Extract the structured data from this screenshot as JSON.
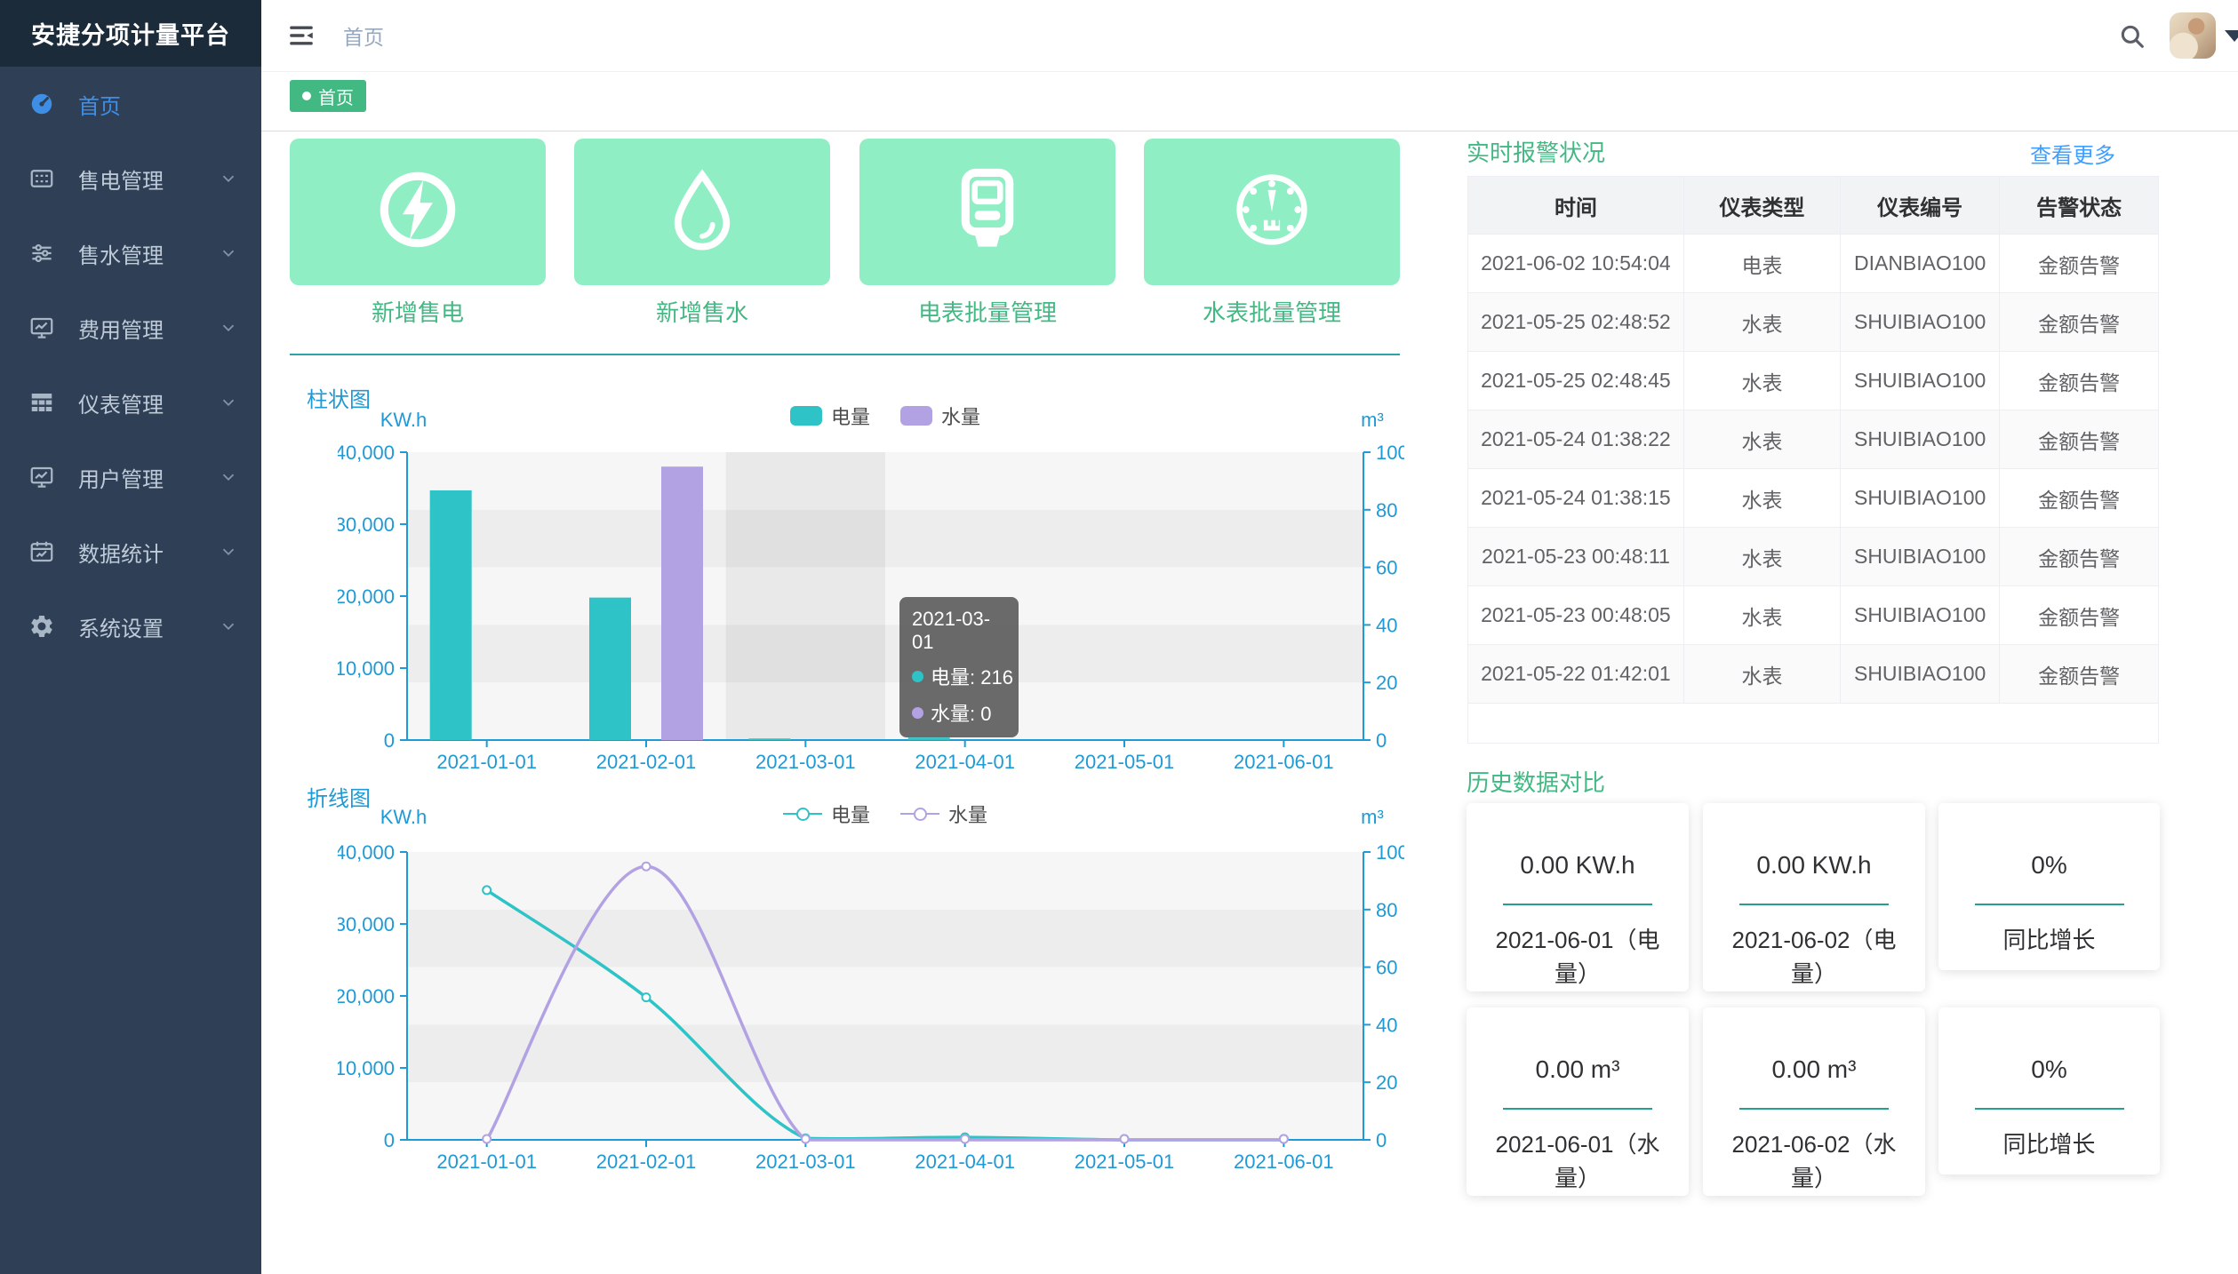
{
  "app": {
    "title": "安捷分项计量平台"
  },
  "topbar": {
    "breadcrumb": "首页"
  },
  "tags": [
    {
      "label": "首页",
      "active": true
    }
  ],
  "sidebar": {
    "items": [
      {
        "icon": "dashboard-icon",
        "label": "首页",
        "active": true,
        "has_children": false
      },
      {
        "icon": "card-icon",
        "label": "售电管理",
        "active": false,
        "has_children": true
      },
      {
        "icon": "sliders-icon",
        "label": "售水管理",
        "active": false,
        "has_children": true
      },
      {
        "icon": "board-chart-icon",
        "label": "费用管理",
        "active": false,
        "has_children": true
      },
      {
        "icon": "grid-icon",
        "label": "仪表管理",
        "active": false,
        "has_children": true
      },
      {
        "icon": "board-chart-icon",
        "label": "用户管理",
        "active": false,
        "has_children": true
      },
      {
        "icon": "calendar-chart-icon",
        "label": "数据统计",
        "active": false,
        "has_children": true
      },
      {
        "icon": "gear-icon",
        "label": "系统设置",
        "active": false,
        "has_children": true
      }
    ]
  },
  "quick_actions": [
    {
      "icon": "lightning-icon",
      "label": "新增售电"
    },
    {
      "icon": "water-drop-icon",
      "label": "新增售水"
    },
    {
      "icon": "electric-meter-icon",
      "label": "电表批量管理"
    },
    {
      "icon": "water-meter-icon",
      "label": "水表批量管理"
    }
  ],
  "chart_data": [
    {
      "type": "bar",
      "title": "柱状图",
      "categories": [
        "2021-01-01",
        "2021-02-01",
        "2021-03-01",
        "2021-04-01",
        "2021-05-01",
        "2021-06-01"
      ],
      "series": [
        {
          "name": "电量",
          "color": "#2ec3c6",
          "axis": "left",
          "values": [
            34700,
            19800,
            216,
            350,
            0,
            0
          ]
        },
        {
          "name": "水量",
          "color": "#b3a2e3",
          "axis": "right",
          "values": [
            0,
            95,
            0,
            0,
            0,
            0
          ]
        }
      ],
      "left_axis": {
        "label": "KW.h",
        "max": 40000,
        "ticks": [
          "0",
          "10,000",
          "20,000",
          "30,000",
          "40,000"
        ]
      },
      "right_axis": {
        "label": "m³",
        "max": 100,
        "ticks": [
          "0",
          "20",
          "40",
          "60",
          "80",
          "100"
        ]
      },
      "legend_position": "top-center",
      "grid": true,
      "hover_category_index": 2,
      "tooltip": {
        "title": "2021-03-01",
        "items": [
          {
            "name": "电量",
            "value": "216"
          },
          {
            "name": "水量",
            "value": "0"
          }
        ]
      }
    },
    {
      "type": "line",
      "title": "折线图",
      "categories": [
        "2021-01-01",
        "2021-02-01",
        "2021-03-01",
        "2021-04-01",
        "2021-05-01",
        "2021-06-01"
      ],
      "series": [
        {
          "name": "电量",
          "color": "#2ec3c6",
          "axis": "left",
          "values": [
            34700,
            19800,
            216,
            350,
            0,
            0
          ]
        },
        {
          "name": "水量",
          "color": "#b3a2e3",
          "axis": "right",
          "values": [
            0,
            95,
            0,
            0,
            0,
            0
          ]
        }
      ],
      "left_axis": {
        "label": "KW.h",
        "max": 40000,
        "ticks": [
          "0",
          "10,000",
          "20,000",
          "30,000",
          "40,000"
        ]
      },
      "right_axis": {
        "label": "m³",
        "max": 100,
        "ticks": [
          "0",
          "20",
          "40",
          "60",
          "80",
          "100"
        ]
      },
      "legend_position": "top-center",
      "grid": true
    }
  ],
  "alarm": {
    "title": "实时报警状况",
    "more_label": "查看更多",
    "columns": [
      "时间",
      "仪表类型",
      "仪表编号",
      "告警状态"
    ],
    "rows": [
      [
        "2021-06-02 10:54:04",
        "电表",
        "DIANBIAO100",
        "金额告警"
      ],
      [
        "2021-05-25 02:48:52",
        "水表",
        "SHUIBIAO100",
        "金额告警"
      ],
      [
        "2021-05-25 02:48:45",
        "水表",
        "SHUIBIAO100",
        "金额告警"
      ],
      [
        "2021-05-24 01:38:22",
        "水表",
        "SHUIBIAO100",
        "金额告警"
      ],
      [
        "2021-05-24 01:38:15",
        "水表",
        "SHUIBIAO100",
        "金额告警"
      ],
      [
        "2021-05-23 00:48:11",
        "水表",
        "SHUIBIAO100",
        "金额告警"
      ],
      [
        "2021-05-23 00:48:05",
        "水表",
        "SHUIBIAO100",
        "金额告警"
      ],
      [
        "2021-05-22 01:42:01",
        "水表",
        "SHUIBIAO100",
        "金额告警"
      ]
    ],
    "trailing_empty_row": true
  },
  "history": {
    "title": "历史数据对比",
    "cards": [
      {
        "value": "0.00 KW.h",
        "label": "2021-06-01（电量）",
        "small": false
      },
      {
        "value": "0.00 KW.h",
        "label": "2021-06-02（电量）",
        "small": false
      },
      {
        "value": "0%",
        "label": "同比增长",
        "small": true
      },
      {
        "value": "0.00 m³",
        "label": "2021-06-01（水量）",
        "small": false
      },
      {
        "value": "0.00 m³",
        "label": "2021-06-02（水量）",
        "small": false
      },
      {
        "value": "0%",
        "label": "同比增长",
        "small": true
      }
    ]
  },
  "colors": {
    "accent_green": "#42b983",
    "link_blue": "#409eff",
    "chart_axis_blue": "#1e9ad6",
    "series_teal": "#2ec3c6",
    "series_purple": "#b3a2e3",
    "mint_card": "#90eec5",
    "divider_teal": "#2da3a8",
    "card_divider_teal": "#289e92",
    "sidebar_active_blue": "#3f8ee6",
    "tooltip_bg": "rgba(95,95,95,0.93)"
  }
}
